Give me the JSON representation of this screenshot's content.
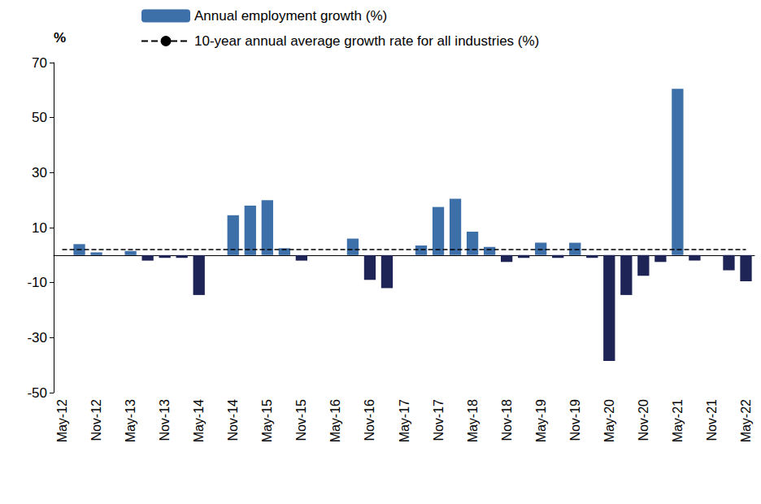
{
  "chart_data": {
    "type": "bar",
    "y_label": "%",
    "categories": [
      "May-12",
      null,
      "Nov-12",
      null,
      "May-13",
      null,
      "Nov-13",
      null,
      "May-14",
      null,
      "Nov-14",
      null,
      "May-15",
      null,
      "Nov-15",
      null,
      "May-16",
      null,
      "Nov-16",
      null,
      "May-17",
      null,
      "Nov-17",
      null,
      "May-18",
      null,
      "Nov-18",
      null,
      "May-19",
      null,
      "Nov-19",
      null,
      "May-20",
      null,
      "Nov-20",
      null,
      "May-21",
      null,
      "Nov-21",
      null,
      "May-22"
    ],
    "series": [
      {
        "name": "Annual employment growth (%)",
        "type": "bar",
        "color": "#3d6fa8",
        "values": [
          0,
          4,
          1,
          0,
          1.5,
          -2,
          -1,
          -1,
          -14.5,
          0,
          14.5,
          18,
          20,
          2.5,
          -2,
          0,
          0,
          6,
          -9,
          -12,
          0,
          3.5,
          17.5,
          20.5,
          8.5,
          3,
          -2.5,
          -1,
          4.5,
          -1,
          4.5,
          -1,
          -38.5,
          -14.5,
          -7.5,
          -2.5,
          60.5,
          -2,
          0,
          -5.5,
          -9.5
        ],
        "colors": [
          "#1e2556",
          "#3d6fa8",
          "#3d6fa8",
          "#1e2556",
          "#3d6fa8",
          "#1e2556",
          "#1e2556",
          "#1e2556",
          "#1e2556",
          "#1e2556",
          "#3d6fa8",
          "#3d6fa8",
          "#3d6fa8",
          "#3d6fa8",
          "#1e2556",
          "#1e2556",
          "#1e2556",
          "#3d6fa8",
          "#1e2556",
          "#1e2556",
          "#1e2556",
          "#3d6fa8",
          "#3d6fa8",
          "#3d6fa8",
          "#3d6fa8",
          "#3d6fa8",
          "#1e2556",
          "#1e2556",
          "#3d6fa8",
          "#1e2556",
          "#3d6fa8",
          "#1e2556",
          "#1e2556",
          "#1e2556",
          "#1e2556",
          "#1e2556",
          "#3d6fa8",
          "#1e2556",
          "#1e2556",
          "#1e2556",
          "#1e2556"
        ]
      },
      {
        "name": "10-year annual average growth rate for all industries (%)",
        "type": "line",
        "color": "#000000",
        "line_style": "dashed",
        "values": [
          2,
          2,
          2,
          2,
          2,
          2,
          2,
          2,
          2,
          2,
          2,
          2,
          2,
          2,
          2,
          2,
          2,
          2,
          2,
          2,
          2,
          2,
          2,
          2,
          2,
          2,
          2,
          2,
          2,
          2,
          2,
          2,
          2,
          2,
          2,
          2,
          2,
          2,
          2,
          2,
          2
        ]
      }
    ],
    "ylim": [
      -50,
      70
    ],
    "yticks": [
      -50,
      -30,
      -10,
      10,
      30,
      50,
      70
    ],
    "grid": false,
    "legend": "top"
  }
}
